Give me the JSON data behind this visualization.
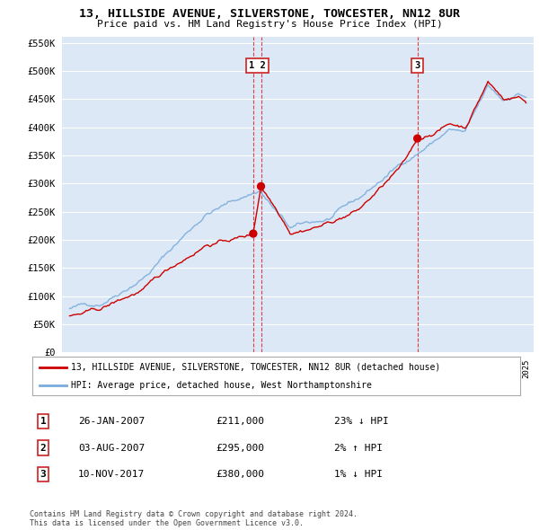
{
  "title": "13, HILLSIDE AVENUE, SILVERSTONE, TOWCESTER, NN12 8UR",
  "subtitle": "Price paid vs. HM Land Registry's House Price Index (HPI)",
  "ylim": [
    0,
    560000
  ],
  "yticks": [
    0,
    50000,
    100000,
    150000,
    200000,
    250000,
    300000,
    350000,
    400000,
    450000,
    500000,
    550000
  ],
  "ytick_labels": [
    "£0",
    "£50K",
    "£100K",
    "£150K",
    "£200K",
    "£250K",
    "£300K",
    "£350K",
    "£400K",
    "£450K",
    "£500K",
    "£550K"
  ],
  "fig_bg": "#ffffff",
  "plot_bg_color": "#dce8f5",
  "grid_color": "#ffffff",
  "red_line_color": "#cc0000",
  "blue_line_color": "#7aacdc",
  "vline_color": "#cc3333",
  "legend_label_red": "13, HILLSIDE AVENUE, SILVERSTONE, TOWCESTER, NN12 8UR (detached house)",
  "legend_label_blue": "HPI: Average price, detached house, West Northamptonshire",
  "trans_dates": [
    2007.07,
    2007.58,
    2017.86
  ],
  "trans_prices": [
    211000,
    295000,
    380000
  ],
  "table_rows": [
    {
      "num": "1",
      "date": "26-JAN-2007",
      "price": "£211,000",
      "hpi": "23% ↓ HPI"
    },
    {
      "num": "2",
      "date": "03-AUG-2007",
      "price": "£295,000",
      "hpi": "2% ↑ HPI"
    },
    {
      "num": "3",
      "date": "10-NOV-2017",
      "price": "£380,000",
      "hpi": "1% ↓ HPI"
    }
  ],
  "footer": "Contains HM Land Registry data © Crown copyright and database right 2024.\nThis data is licensed under the Open Government Licence v3.0.",
  "xlim_start": 1994.5,
  "xlim_end": 2025.5
}
